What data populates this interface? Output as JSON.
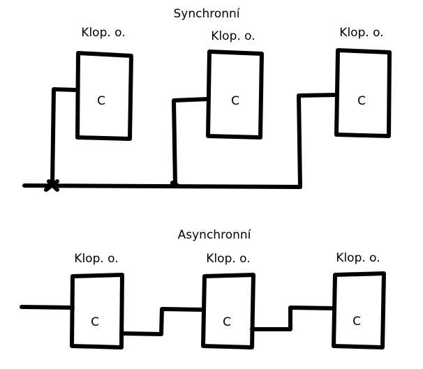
{
  "sync": {
    "title": "Synchronní",
    "blocks": [
      {
        "label": "Klop. o.",
        "input": "C"
      },
      {
        "label": "Klop. o.",
        "input": "C"
      },
      {
        "label": "Klop. o.",
        "input": "C"
      }
    ]
  },
  "async": {
    "title": "Asynchronní",
    "blocks": [
      {
        "label": "Klop. o.",
        "input": "C"
      },
      {
        "label": "Klop. o.",
        "input": "C"
      },
      {
        "label": "Klop. o.",
        "input": "C"
      }
    ]
  },
  "colors": {
    "stroke": "#000000",
    "background": "#ffffff"
  }
}
